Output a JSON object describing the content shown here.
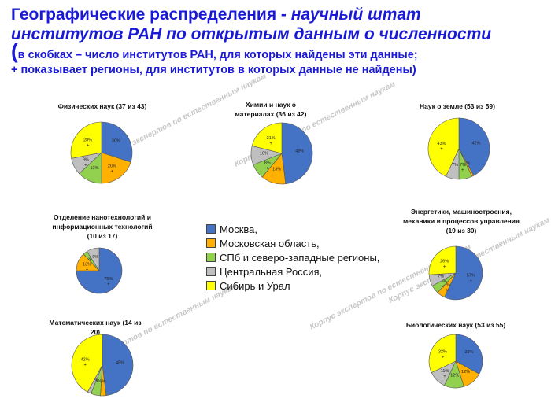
{
  "header": {
    "title_part1": "Географические распределения - ",
    "title_part2": "научный штат",
    "title_line2": "институтов РАН по открытым данным о численности",
    "note_open": "(",
    "note_line1": "в скобках – число институтов РАН, для которых найдены эти данные;",
    "note_line2": "+ показывает регионы, для  институтов в которых данные не найдены)"
  },
  "watermark": "Корпус экспертов по естественным наукам",
  "colors": {
    "moscow": "#4472c4",
    "moscow_region": "#ffb000",
    "spb": "#92d050",
    "central": "#bfbfbf",
    "siberia": "#ffff00"
  },
  "legend": [
    {
      "label": "Москва,",
      "color": "#4472c4"
    },
    {
      "label": "Московская область,",
      "color": "#ffb000"
    },
    {
      "label": "СПб и северо-западные регионы,",
      "color": "#92d050"
    },
    {
      "label": "Центральная Россия,",
      "color": "#bfbfbf"
    },
    {
      "label": "Сибирь и Урал",
      "color": "#ffff00"
    }
  ],
  "chart_data": [
    {
      "type": "pie",
      "title": "Физических наук (37 из 43)",
      "series": [
        {
          "category": "Москва",
          "value": 30,
          "label": "30%",
          "plus": false
        },
        {
          "category": "Московская область",
          "value": 20,
          "label": "20%",
          "plus": true
        },
        {
          "category": "СПб и северо-западные регионы",
          "value": 13,
          "label": "13%",
          "plus": false
        },
        {
          "category": "Центральная Россия",
          "value": 9,
          "label": "9%",
          "plus": true
        },
        {
          "category": "Сибирь и Урал",
          "value": 28,
          "label": "28%",
          "plus": true
        }
      ]
    },
    {
      "type": "pie",
      "title": "Химии и наук о материалах (36 из 42)",
      "series": [
        {
          "category": "Москва",
          "value": 48,
          "label": "48%",
          "plus": false
        },
        {
          "category": "Московская область",
          "value": 13,
          "label": "13%",
          "plus": false
        },
        {
          "category": "СПб и северо-западные регионы",
          "value": 8,
          "label": "8%",
          "plus": true
        },
        {
          "category": "Центральная Россия",
          "value": 10,
          "label": "10%",
          "plus": false
        },
        {
          "category": "Сибирь и Урал",
          "value": 21,
          "label": "21%",
          "plus": true
        }
      ]
    },
    {
      "type": "pie",
      "title": "Наук о земле (53 из 59)",
      "series": [
        {
          "category": "Москва",
          "value": 42,
          "label": "42%",
          "plus": false
        },
        {
          "category": "Московская область",
          "value": 1,
          "label": "1%",
          "plus": false
        },
        {
          "category": "СПб и северо-западные регионы",
          "value": 7,
          "label": "7%",
          "plus": true
        },
        {
          "category": "Центральная Россия",
          "value": 7,
          "label": "7%",
          "plus": false
        },
        {
          "category": "Сибирь и Урал",
          "value": 43,
          "label": "43%",
          "plus": true
        }
      ]
    },
    {
      "type": "pie",
      "title": "Отделение нанотехнологий и информационных технологий (10 из 17)",
      "series": [
        {
          "category": "Москва",
          "value": 75,
          "label": "75%",
          "plus": true
        },
        {
          "category": "Московская область",
          "value": 13,
          "label": "13%",
          "plus": true
        },
        {
          "category": "СПб и северо-западные регионы",
          "value": 3,
          "label": "3%",
          "plus": false
        },
        {
          "category": "Центральная Россия",
          "value": 9,
          "label": "9%",
          "plus": false
        },
        {
          "category": "Сибирь и Урал",
          "value": 0,
          "label": "",
          "plus": false
        }
      ]
    },
    {
      "type": "pie",
      "title": "Энергетики, машиностроения, механики и процессов управления (19 из 30)",
      "series": [
        {
          "category": "Москва",
          "value": 57,
          "label": "57%",
          "plus": true
        },
        {
          "category": "Московская область",
          "value": 5,
          "label": "5%",
          "plus": true
        },
        {
          "category": "СПб и северо-западные регионы",
          "value": 5,
          "label": "5%",
          "plus": true
        },
        {
          "category": "Центральная Россия",
          "value": 7,
          "label": "7%",
          "plus": false
        },
        {
          "category": "Сибирь и Урал",
          "value": 26,
          "label": "26%",
          "plus": true
        }
      ]
    },
    {
      "type": "pie",
      "title": "Математических наук (14 из 20)",
      "series": [
        {
          "category": "Москва",
          "value": 48,
          "label": "48%",
          "plus": false
        },
        {
          "category": "Московская область",
          "value": 3,
          "label": "3%",
          "plus": false
        },
        {
          "category": "СПб и северо-западные регионы",
          "value": 5,
          "label": "5%",
          "plus": false
        },
        {
          "category": "Центральная Россия",
          "value": 2,
          "label": "2%",
          "plus": false
        },
        {
          "category": "Сибирь и Урал",
          "value": 42,
          "label": "42%",
          "plus": true
        }
      ]
    },
    {
      "type": "pie",
      "title": "Биологических наук (53 из 55)",
      "series": [
        {
          "category": "Москва",
          "value": 33,
          "label": "33%",
          "plus": false
        },
        {
          "category": "Московская область",
          "value": 12,
          "label": "12%",
          "plus": false
        },
        {
          "category": "СПб и северо-западные регионы",
          "value": 12,
          "label": "12%",
          "plus": false
        },
        {
          "category": "Центральная Россия",
          "value": 11,
          "label": "11%",
          "plus": true
        },
        {
          "category": "Сибирь и Урал",
          "value": 32,
          "label": "32%",
          "plus": true
        }
      ]
    }
  ]
}
